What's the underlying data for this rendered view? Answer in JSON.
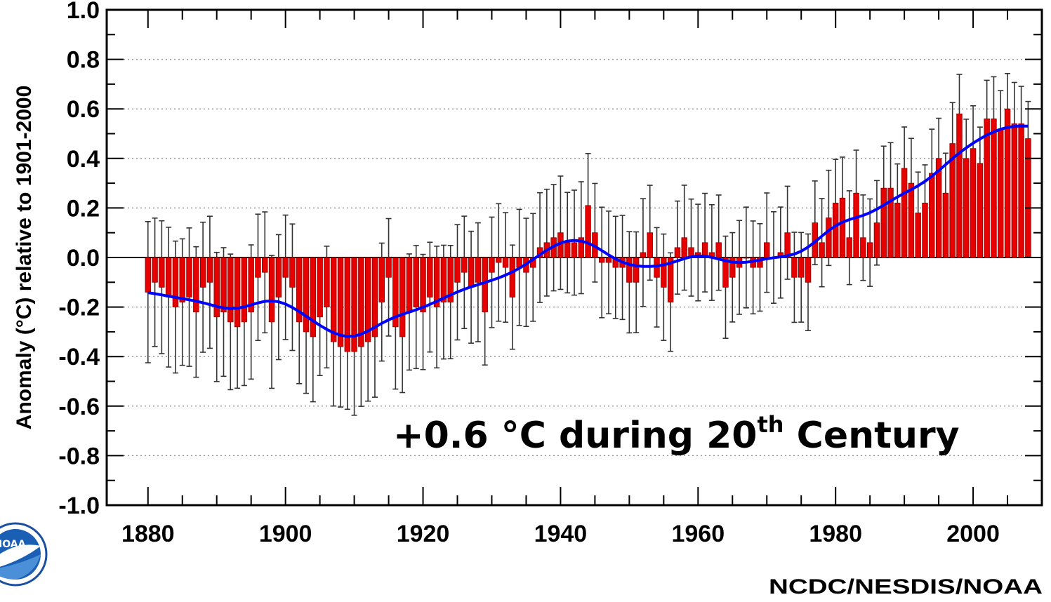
{
  "chart_data": {
    "type": "bar",
    "title": "",
    "xlabel": "",
    "ylabel": "Anomaly (°C) relative to 1901-2000",
    "xlim": [
      1874,
      2010
    ],
    "ylim": [
      -1.0,
      1.0
    ],
    "yticks": [
      "1.0",
      "0.8",
      "0.6",
      "0.4",
      "0.2",
      "0.0",
      "-0.2",
      "-0.4",
      "-0.6",
      "-0.8",
      "-1.0"
    ],
    "ytick_values": [
      1.0,
      0.8,
      0.6,
      0.4,
      0.2,
      0.0,
      -0.2,
      -0.4,
      -0.6,
      -0.8,
      -1.0
    ],
    "xticks": [
      "1880",
      "1900",
      "1920",
      "1940",
      "1960",
      "1980",
      "2000"
    ],
    "xtick_values": [
      1880,
      1900,
      1920,
      1940,
      1960,
      1980,
      2000
    ],
    "grid": "horizontal-dotted",
    "annotation": {
      "main": "+0.6 °C during 20",
      "sup": "th",
      "tail": " Century"
    },
    "years_start": 1880,
    "values": [
      -0.14,
      -0.1,
      -0.12,
      -0.16,
      -0.2,
      -0.18,
      -0.16,
      -0.22,
      -0.12,
      -0.1,
      -0.24,
      -0.22,
      -0.26,
      -0.28,
      -0.26,
      -0.22,
      -0.08,
      -0.06,
      -0.26,
      -0.16,
      -0.08,
      -0.12,
      -0.26,
      -0.3,
      -0.32,
      -0.24,
      -0.2,
      -0.34,
      -0.36,
      -0.38,
      -0.38,
      -0.36,
      -0.34,
      -0.32,
      -0.18,
      -0.08,
      -0.28,
      -0.32,
      -0.22,
      -0.2,
      -0.22,
      -0.16,
      -0.2,
      -0.18,
      -0.18,
      -0.1,
      -0.06,
      -0.12,
      -0.1,
      -0.22,
      -0.06,
      -0.02,
      -0.04,
      -0.16,
      -0.04,
      -0.06,
      -0.04,
      0.04,
      0.06,
      0.08,
      0.1,
      0.06,
      0.06,
      0.08,
      0.21,
      0.1,
      -0.02,
      -0.02,
      -0.04,
      -0.04,
      -0.1,
      -0.1,
      0.02,
      0.1,
      -0.08,
      -0.12,
      -0.18,
      0.04,
      0.08,
      0.04,
      0.02,
      0.06,
      0.02,
      0.06,
      -0.12,
      -0.08,
      -0.04,
      0.0,
      -0.04,
      -0.04,
      0.06,
      0.0,
      0.02,
      0.1,
      -0.08,
      -0.08,
      -0.1,
      0.14,
      0.06,
      0.16,
      0.22,
      0.24,
      0.08,
      0.26,
      0.08,
      0.06,
      0.14,
      0.28,
      0.28,
      0.22,
      0.36,
      0.3,
      0.18,
      0.22,
      0.34,
      0.4,
      0.26,
      0.46,
      0.58,
      0.4,
      0.44,
      0.38,
      0.56,
      0.56,
      0.52,
      0.6,
      0.54,
      0.54,
      0.48
    ],
    "error_bars": true,
    "smooth_curve": true,
    "series": [
      {
        "name": "",
        "color": "#e60000",
        "role": "annual anomaly bars"
      },
      {
        "name": "",
        "color": "#0000ff",
        "role": "smoothed trend"
      }
    ]
  },
  "credit": "NCDC/NESDIS/NOAA",
  "logo": {
    "text": "NOAA",
    "icon": "noaa-logo-icon"
  }
}
